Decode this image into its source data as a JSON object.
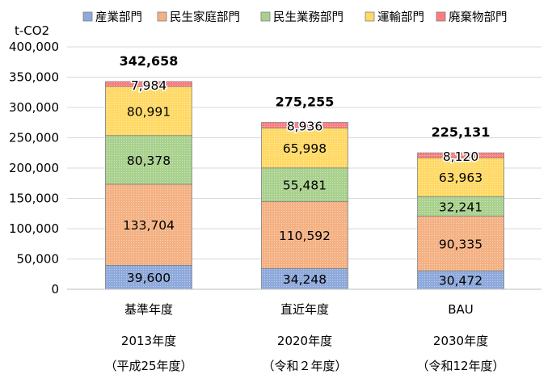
{
  "chart_data": {
    "type": "stacked-bar",
    "unit": "t-CO2",
    "ylim": [
      0,
      400000
    ],
    "ytick_step": 50000,
    "ytick_labels": [
      "0",
      "50,000",
      "100,000",
      "150,000",
      "200,000",
      "250,000",
      "300,000",
      "350,000",
      "400,000"
    ],
    "grid": true,
    "legend_position": "top",
    "categories": [
      {
        "label": "基準年度",
        "year": "2013年度",
        "era": "（平成25年度）"
      },
      {
        "label": "直近年度",
        "year": "2020年度",
        "era": "（令和２年度）"
      },
      {
        "label": "BAU",
        "year": "2030年度",
        "era": "（令和12年度）"
      }
    ],
    "series": [
      {
        "name": "産業部門",
        "color": "#8EA9DB",
        "values": [
          39600,
          34248,
          30472
        ],
        "labels": [
          "39,600",
          "34,248",
          "30,472"
        ]
      },
      {
        "name": "民生家庭部門",
        "color": "#F4B183",
        "values": [
          133704,
          110592,
          90335
        ],
        "labels": [
          "133,704",
          "110,592",
          "90,335"
        ]
      },
      {
        "name": "民生業務部門",
        "color": "#A9D18E",
        "values": [
          80378,
          55481,
          32241
        ],
        "labels": [
          "80,378",
          "55,481",
          "32,241"
        ]
      },
      {
        "name": "運輸部門",
        "color": "#FFD966",
        "values": [
          80991,
          65998,
          63963
        ],
        "labels": [
          "80,991",
          "65,998",
          "63,963"
        ]
      },
      {
        "name": "廃棄物部門",
        "color": "#FF7C80",
        "values": [
          7984,
          8936,
          8120
        ],
        "labels": [
          "7,984",
          "8,936",
          "8,120"
        ]
      }
    ],
    "totals": [
      342658,
      275255,
      225131
    ],
    "total_labels": [
      "342,658",
      "275,255",
      "225,131"
    ]
  }
}
